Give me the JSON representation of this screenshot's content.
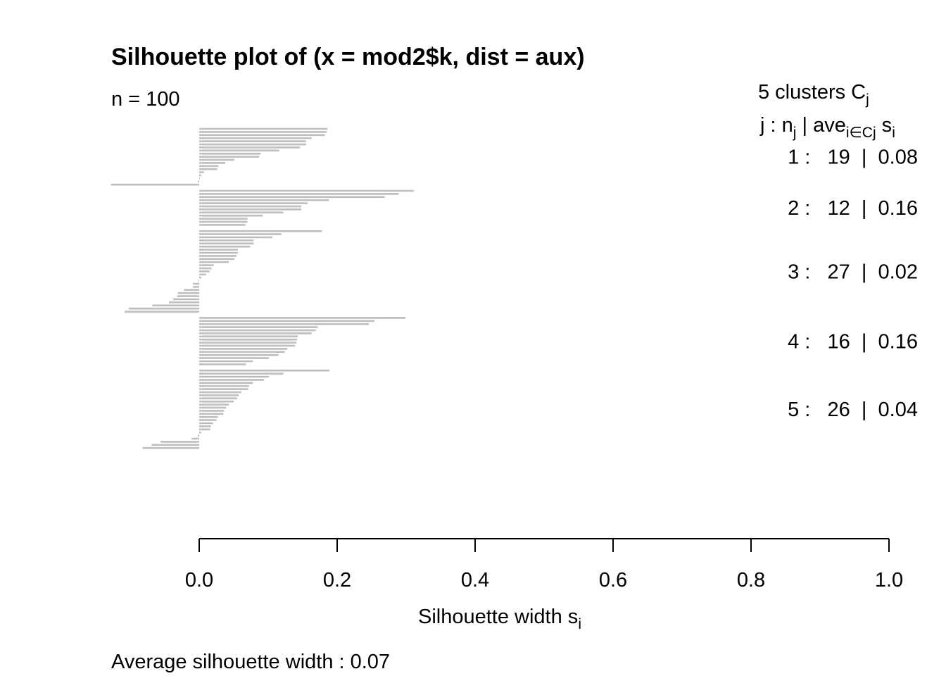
{
  "chart_data": {
    "type": "bar",
    "orientation": "horizontal",
    "title": "Silhouette plot of (x = mod2$k, dist = aux)",
    "n_label": "n = 100",
    "header": {
      "clusters_line": "5  clusters  C",
      "clusters_sub": "j",
      "col_j": "j :  n",
      "col_j_sub": "j",
      "col_ave": " | ave",
      "col_ave_sub": "i∈Cj",
      "col_s": "  s",
      "col_s_sub": "i"
    },
    "xlabel": "Silhouette width s",
    "xlabel_sub": "i",
    "xlim": [
      0,
      1
    ],
    "x_ticks": [
      "0.0",
      "0.2",
      "0.4",
      "0.6",
      "0.8",
      "1.0"
    ],
    "bar_color": "#bebebe",
    "average_label": "Average silhouette width :  0.07",
    "clusters": [
      {
        "label": "1 :   19  |  0.08",
        "n": 19,
        "values": [
          0.186,
          0.185,
          0.182,
          0.163,
          0.155,
          0.155,
          0.146,
          0.116,
          0.089,
          0.087,
          0.051,
          0.038,
          0.028,
          0.026,
          0.007,
          0.003,
          0.001,
          -0.002,
          -0.128
        ]
      },
      {
        "label": "2 :   12  |  0.16",
        "n": 12,
        "values": [
          0.311,
          0.289,
          0.269,
          0.188,
          0.157,
          0.148,
          0.148,
          0.122,
          0.092,
          0.07,
          0.07,
          0.067
        ]
      },
      {
        "label": "3 :   27  |  0.02",
        "n": 27,
        "values": [
          0.178,
          0.119,
          0.106,
          0.079,
          0.079,
          0.074,
          0.056,
          0.056,
          0.054,
          0.051,
          0.043,
          0.021,
          0.018,
          0.015,
          0.01,
          0.003,
          -0.001,
          -0.009,
          -0.009,
          -0.022,
          -0.031,
          -0.032,
          -0.038,
          -0.044,
          -0.068,
          -0.102,
          -0.108
        ]
      },
      {
        "label": "4 :   16  |  0.16",
        "n": 16,
        "values": [
          0.299,
          0.254,
          0.246,
          0.172,
          0.169,
          0.163,
          0.143,
          0.142,
          0.141,
          0.139,
          0.128,
          0.124,
          0.115,
          0.101,
          0.078,
          0.068
        ]
      },
      {
        "label": "5 :   26  |  0.04",
        "n": 26,
        "values": [
          0.189,
          0.122,
          0.101,
          0.094,
          0.078,
          0.072,
          0.071,
          0.061,
          0.057,
          0.055,
          0.05,
          0.043,
          0.039,
          0.036,
          0.035,
          0.027,
          0.025,
          0.02,
          0.017,
          0.016,
          0.003,
          -0.002,
          -0.011,
          -0.056,
          -0.069,
          -0.082
        ]
      }
    ]
  }
}
